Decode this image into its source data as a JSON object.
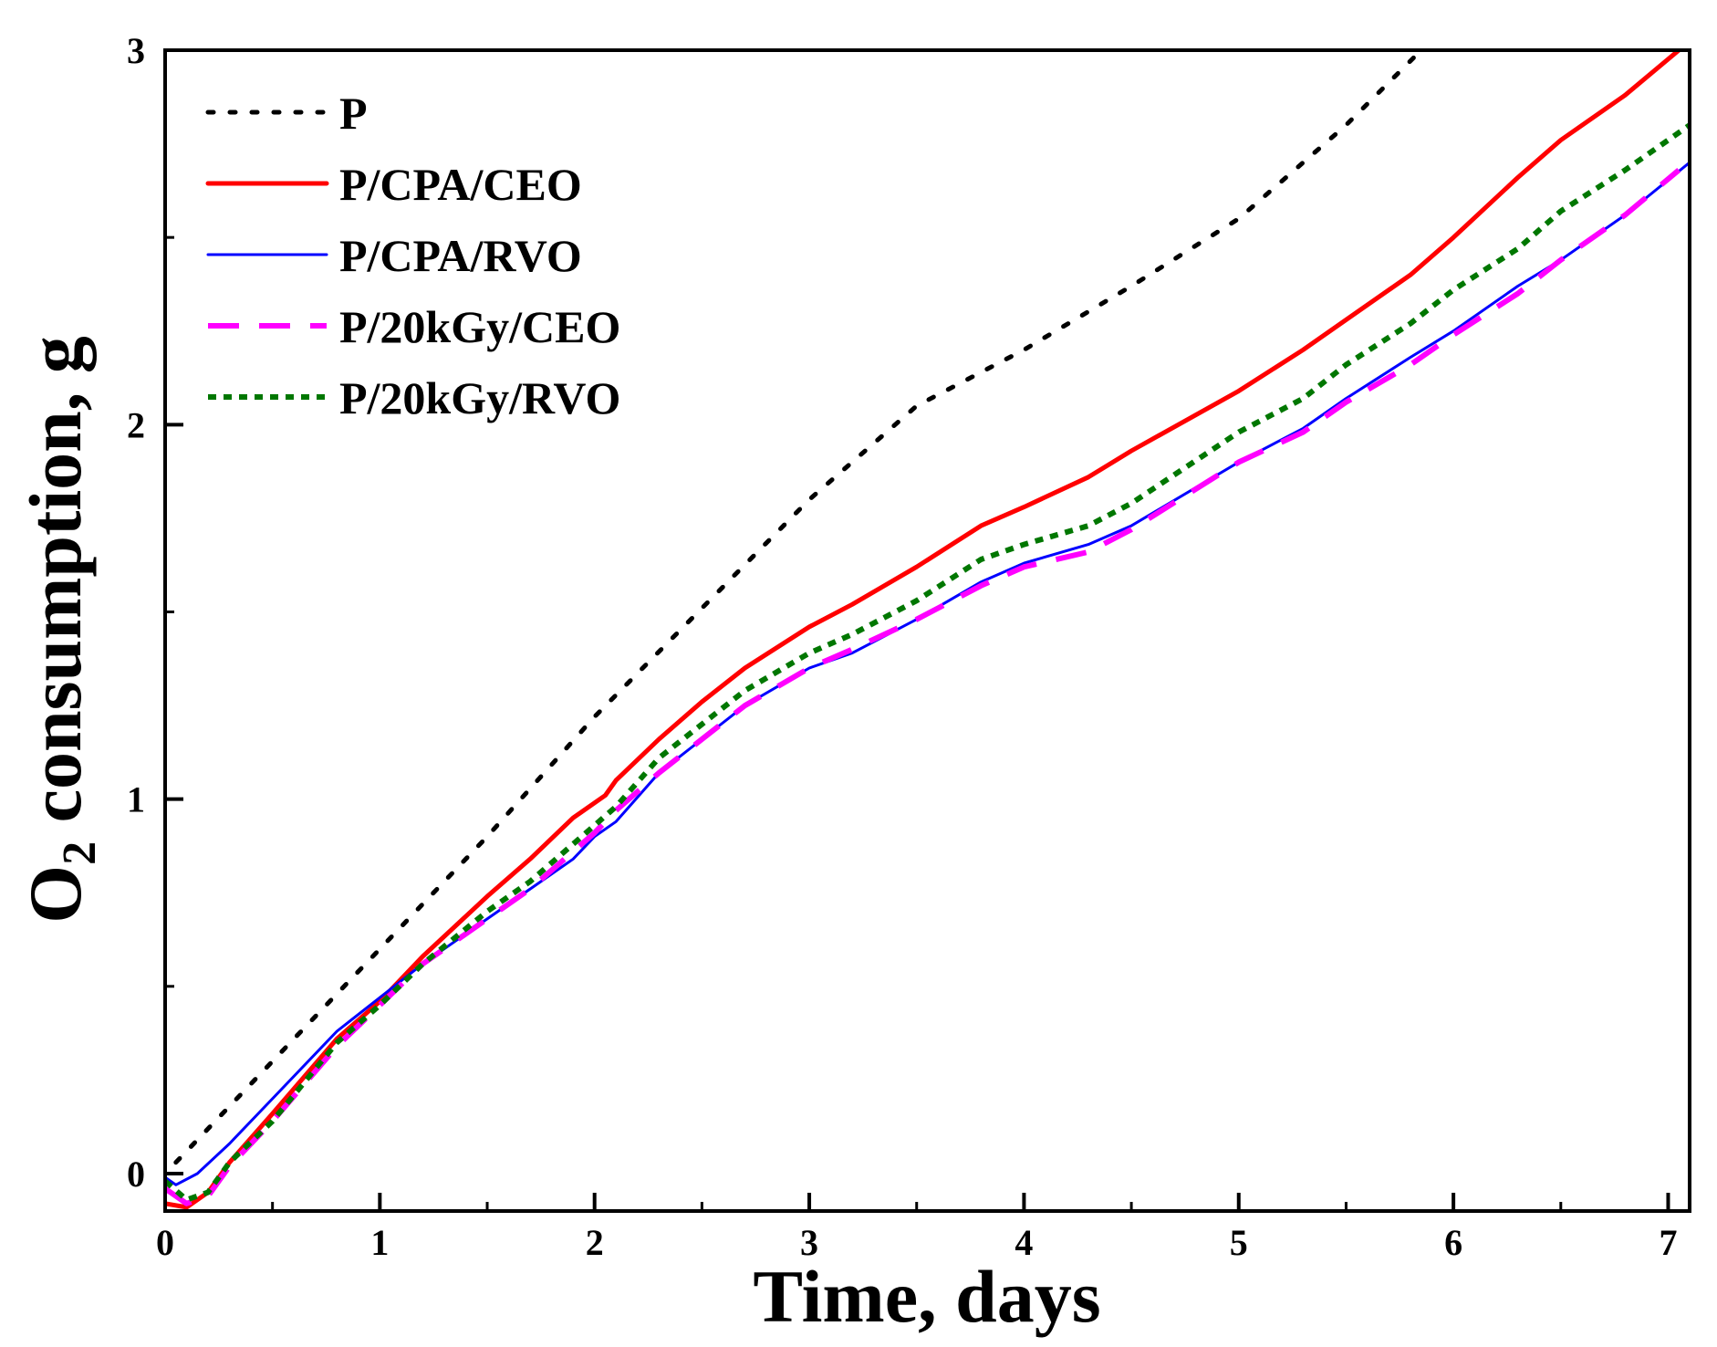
{
  "chart_data": {
    "type": "line",
    "title": "",
    "xlabel": "Time, days",
    "ylabel": "O2 consumption, g",
    "ylabel_main": "O",
    "ylabel_sub": "2",
    "ylabel_rest": " consumption, g",
    "xlim": [
      0,
      7.1
    ],
    "ylim": [
      -0.1,
      3.0
    ],
    "xticks": [
      0,
      1,
      2,
      3,
      4,
      5,
      6,
      7
    ],
    "xtick_labels": [
      "0",
      "1",
      "2",
      "3",
      "4",
      "5",
      "6",
      "7"
    ],
    "yticks": [
      0,
      1,
      2,
      3
    ],
    "ytick_labels": [
      "0",
      "1",
      "2",
      "3"
    ],
    "x_minor_step": 0.5,
    "y_minor_step": 0.5,
    "grid": false,
    "legend_position": "top-left",
    "series": [
      {
        "name": "P",
        "color": "#000000",
        "style": "dotted",
        "x": [
          0.05,
          0.5,
          1,
          1.5,
          2,
          2.5,
          3,
          3.5,
          4,
          4.5,
          5,
          5.5,
          5.85
        ],
        "y": [
          0.03,
          0.3,
          0.6,
          0.9,
          1.22,
          1.51,
          1.8,
          2.05,
          2.2,
          2.37,
          2.55,
          2.8,
          3.0
        ]
      },
      {
        "name": "P/CPA/CEO",
        "color": "#ff0000",
        "style": "solid",
        "x": [
          0,
          0.1,
          0.2,
          0.3,
          0.5,
          0.8,
          1,
          1.2,
          1.5,
          1.7,
          1.9,
          2.05,
          2.1,
          2.3,
          2.5,
          2.7,
          3,
          3.2,
          3.5,
          3.8,
          4,
          4.3,
          4.5,
          5,
          5.3,
          5.5,
          5.8,
          6,
          6.3,
          6.5,
          6.8,
          7.05
        ],
        "y": [
          -0.08,
          -0.09,
          -0.05,
          0.03,
          0.16,
          0.36,
          0.46,
          0.58,
          0.74,
          0.84,
          0.95,
          1.01,
          1.05,
          1.16,
          1.26,
          1.35,
          1.46,
          1.52,
          1.62,
          1.73,
          1.78,
          1.86,
          1.93,
          2.09,
          2.2,
          2.28,
          2.4,
          2.5,
          2.66,
          2.76,
          2.88,
          3.0
        ]
      },
      {
        "name": "P/CPA/RVO",
        "color": "#0000ff",
        "style": "solid",
        "x": [
          0,
          0.05,
          0.15,
          0.3,
          0.5,
          0.8,
          1,
          1.2,
          1.5,
          1.7,
          1.9,
          2,
          2.1,
          2.3,
          2.5,
          2.7,
          3,
          3.2,
          3.5,
          3.8,
          4,
          4.3,
          4.5,
          5,
          5.3,
          5.5,
          5.8,
          6,
          6.3,
          6.5,
          6.8,
          7.1
        ],
        "y": [
          -0.01,
          -0.03,
          0.0,
          0.08,
          0.2,
          0.38,
          0.47,
          0.56,
          0.68,
          0.76,
          0.84,
          0.9,
          0.94,
          1.07,
          1.16,
          1.25,
          1.35,
          1.39,
          1.48,
          1.58,
          1.63,
          1.68,
          1.73,
          1.9,
          1.99,
          2.07,
          2.18,
          2.25,
          2.37,
          2.44,
          2.56,
          2.7
        ]
      },
      {
        "name": "P/20kGy/CEO",
        "color": "#ff00ff",
        "style": "dashed",
        "x": [
          0,
          0.1,
          0.2,
          0.3,
          0.5,
          0.8,
          1,
          1.2,
          1.5,
          1.7,
          1.9,
          2,
          2.1,
          2.3,
          2.5,
          2.7,
          3,
          3.2,
          3.5,
          3.8,
          4,
          4.3,
          4.5,
          5,
          5.3,
          5.5,
          5.8,
          6,
          6.3,
          6.5,
          6.8,
          7.05
        ],
        "y": [
          -0.04,
          -0.08,
          -0.06,
          0.02,
          0.14,
          0.34,
          0.45,
          0.56,
          0.68,
          0.76,
          0.86,
          0.91,
          0.97,
          1.07,
          1.16,
          1.25,
          1.35,
          1.4,
          1.48,
          1.57,
          1.62,
          1.66,
          1.72,
          1.9,
          1.98,
          2.06,
          2.16,
          2.24,
          2.35,
          2.44,
          2.56,
          2.68
        ]
      },
      {
        "name": "P/20kGy/RVO",
        "color": "#007700",
        "style": "dotted",
        "x": [
          0,
          0.1,
          0.2,
          0.3,
          0.5,
          0.8,
          1,
          1.2,
          1.5,
          1.7,
          1.9,
          2,
          2.1,
          2.3,
          2.5,
          2.7,
          3,
          3.2,
          3.5,
          3.8,
          4,
          4.3,
          4.5,
          5,
          5.3,
          5.5,
          5.8,
          6,
          6.3,
          6.5,
          6.8,
          7.1
        ],
        "y": [
          -0.02,
          -0.07,
          -0.05,
          0.03,
          0.14,
          0.35,
          0.45,
          0.56,
          0.7,
          0.78,
          0.88,
          0.93,
          0.98,
          1.11,
          1.2,
          1.29,
          1.39,
          1.44,
          1.53,
          1.64,
          1.68,
          1.73,
          1.79,
          1.98,
          2.07,
          2.16,
          2.27,
          2.36,
          2.47,
          2.57,
          2.68,
          2.8
        ]
      }
    ]
  }
}
